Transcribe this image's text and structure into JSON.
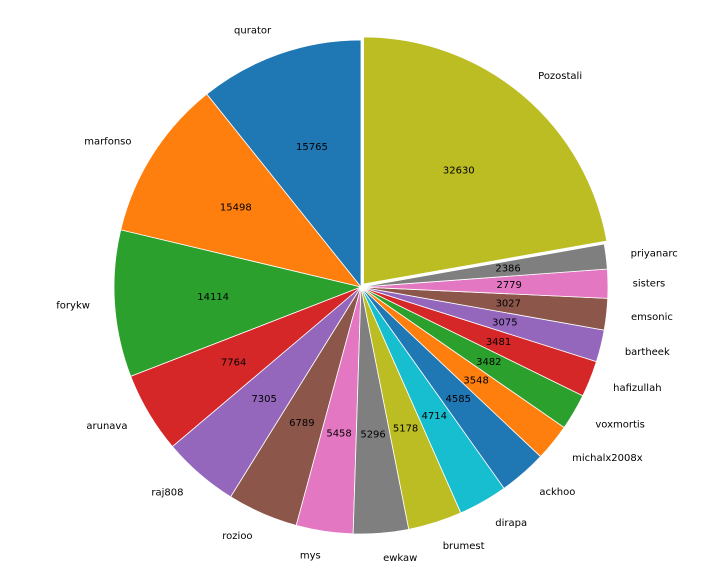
{
  "chart_data": {
    "type": "pie",
    "title": "",
    "start_angle_deg": 90,
    "direction": "counterclockwise",
    "exploded_category": "Pozostali",
    "colors": [
      "#1f77b4",
      "#ff7f0e",
      "#2ca02c",
      "#d62728",
      "#9467bd",
      "#8c564b",
      "#e377c2",
      "#7f7f7f",
      "#bcbd22",
      "#17becf"
    ],
    "slices": [
      {
        "label": "qurator",
        "value": 15765
      },
      {
        "label": "marfonso",
        "value": 15498
      },
      {
        "label": "forykw",
        "value": 14114
      },
      {
        "label": "arunava",
        "value": 7764
      },
      {
        "label": "raj808",
        "value": 7305
      },
      {
        "label": "rozioo",
        "value": 6789
      },
      {
        "label": "mys",
        "value": 5458
      },
      {
        "label": "ewkaw",
        "value": 5296
      },
      {
        "label": "brumest",
        "value": 5178
      },
      {
        "label": "dirapa",
        "value": 4714
      },
      {
        "label": "ackhoo",
        "value": 4585
      },
      {
        "label": "michalx2008x",
        "value": 3548
      },
      {
        "label": "voxmortis",
        "value": 3482
      },
      {
        "label": "hafizullah",
        "value": 3481
      },
      {
        "label": "bartheek",
        "value": 3075
      },
      {
        "label": "emsonic",
        "value": 3027
      },
      {
        "label": "sisters",
        "value": 2779
      },
      {
        "label": "priyanarc",
        "value": 2386
      },
      {
        "label": "Pozostali",
        "value": 32630
      }
    ]
  }
}
